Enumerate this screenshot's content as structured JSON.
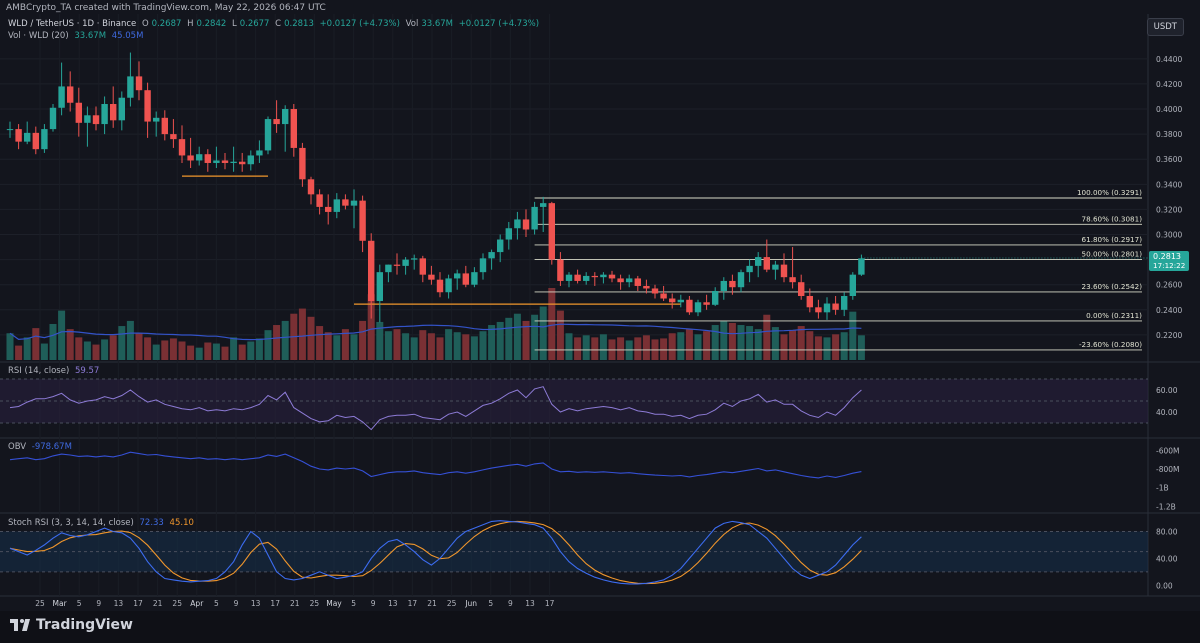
{
  "header": {
    "attribution": "AMBCrypto_TA created with TradingView.com, May 22, 2026 06:47 UTC",
    "symbol": "WLD / TetherUS · 1D · Binance",
    "o_label": "O",
    "o_value": "0.2687",
    "h_label": "H",
    "h_value": "0.2842",
    "l_label": "L",
    "l_value": "0.2677",
    "c_label": "C",
    "c_value": "0.2813",
    "change": "+0.0127 (+4.73%)",
    "vol_label": "Vol",
    "vol_value": "33.67M",
    "vol_change": "+0.0127 (+4.73%)",
    "vol_ma_label": "Vol · WLD (20)",
    "vol_ma_1": "33.67M",
    "vol_ma_2": "45.05M",
    "currency": "USDT"
  },
  "indicators": {
    "rsi_label": "RSI (14, close)",
    "rsi_value": "59.57",
    "obv_label": "OBV",
    "obv_value": "-978.67M",
    "stoch_label": "Stoch RSI (3, 3, 14, 14, close)",
    "stoch_k": "72.33",
    "stoch_d": "45.10"
  },
  "footer": {
    "brand": "TradingView"
  },
  "colors": {
    "up": "#26a69a",
    "down": "#ef5350",
    "background": "#13151d",
    "fib_line": "#d7d9c8",
    "support": "#f0962c",
    "rsi_line": "#8d7bd6",
    "obv_line": "#3550d6",
    "stoch_k": "#3c6cf0",
    "stoch_d": "#f0962c",
    "vol_ma": "#3353c9"
  },
  "chart_data": {
    "type": "candlestick",
    "price_axis": {
      "ylim": [
        0.2,
        0.455
      ],
      "ticks": [
        "0.4400",
        "0.4200",
        "0.4000",
        "0.3800",
        "0.3600",
        "0.3400",
        "0.3200",
        "0.3000",
        "0.2800",
        "0.2600",
        "0.2400",
        "0.2200"
      ],
      "current_price": "0.2813",
      "countdown": "17:12:22"
    },
    "x_axis": {
      "ticks": [
        "25",
        "Mar",
        "5",
        "9",
        "13",
        "17",
        "21",
        "25",
        "Apr",
        "5",
        "9",
        "13",
        "17",
        "21",
        "25",
        "May",
        "5",
        "9",
        "13",
        "17",
        "21",
        "25",
        "Jun",
        "5",
        "9",
        "13",
        "17"
      ]
    },
    "candles_ohlc": [
      [
        0.384,
        0.39,
        0.377,
        0.384
      ],
      [
        0.384,
        0.388,
        0.368,
        0.374
      ],
      [
        0.374,
        0.39,
        0.372,
        0.381
      ],
      [
        0.381,
        0.386,
        0.364,
        0.368
      ],
      [
        0.368,
        0.388,
        0.365,
        0.384
      ],
      [
        0.384,
        0.404,
        0.382,
        0.401
      ],
      [
        0.401,
        0.437,
        0.395,
        0.418
      ],
      [
        0.418,
        0.43,
        0.398,
        0.405
      ],
      [
        0.405,
        0.417,
        0.378,
        0.389
      ],
      [
        0.389,
        0.402,
        0.37,
        0.395
      ],
      [
        0.395,
        0.402,
        0.383,
        0.388
      ],
      [
        0.388,
        0.41,
        0.38,
        0.404
      ],
      [
        0.404,
        0.418,
        0.385,
        0.391
      ],
      [
        0.391,
        0.414,
        0.383,
        0.409
      ],
      [
        0.409,
        0.445,
        0.402,
        0.426
      ],
      [
        0.426,
        0.438,
        0.407,
        0.415
      ],
      [
        0.415,
        0.421,
        0.377,
        0.39
      ],
      [
        0.39,
        0.398,
        0.378,
        0.393
      ],
      [
        0.393,
        0.399,
        0.375,
        0.38
      ],
      [
        0.38,
        0.392,
        0.369,
        0.376
      ],
      [
        0.376,
        0.387,
        0.357,
        0.363
      ],
      [
        0.363,
        0.377,
        0.353,
        0.359
      ],
      [
        0.359,
        0.37,
        0.355,
        0.364
      ],
      [
        0.364,
        0.368,
        0.35,
        0.357
      ],
      [
        0.357,
        0.37,
        0.353,
        0.359
      ],
      [
        0.359,
        0.365,
        0.352,
        0.357
      ],
      [
        0.357,
        0.37,
        0.35,
        0.358
      ],
      [
        0.358,
        0.365,
        0.35,
        0.356
      ],
      [
        0.356,
        0.367,
        0.351,
        0.363
      ],
      [
        0.363,
        0.375,
        0.357,
        0.367
      ],
      [
        0.367,
        0.394,
        0.364,
        0.392
      ],
      [
        0.392,
        0.407,
        0.381,
        0.388
      ],
      [
        0.388,
        0.403,
        0.366,
        0.4
      ],
      [
        0.4,
        0.404,
        0.362,
        0.369
      ],
      [
        0.369,
        0.373,
        0.338,
        0.344
      ],
      [
        0.344,
        0.346,
        0.324,
        0.332
      ],
      [
        0.332,
        0.336,
        0.316,
        0.322
      ],
      [
        0.322,
        0.332,
        0.308,
        0.318
      ],
      [
        0.318,
        0.333,
        0.313,
        0.328
      ],
      [
        0.328,
        0.332,
        0.32,
        0.323
      ],
      [
        0.323,
        0.336,
        0.305,
        0.327
      ],
      [
        0.327,
        0.331,
        0.286,
        0.295
      ],
      [
        0.295,
        0.301,
        0.233,
        0.247
      ],
      [
        0.247,
        0.276,
        0.23,
        0.27
      ],
      [
        0.27,
        0.276,
        0.262,
        0.276
      ],
      [
        0.276,
        0.285,
        0.268,
        0.275
      ],
      [
        0.275,
        0.282,
        0.268,
        0.28
      ],
      [
        0.28,
        0.284,
        0.272,
        0.281
      ],
      [
        0.281,
        0.283,
        0.262,
        0.268
      ],
      [
        0.268,
        0.275,
        0.26,
        0.264
      ],
      [
        0.264,
        0.27,
        0.25,
        0.254
      ],
      [
        0.254,
        0.268,
        0.249,
        0.265
      ],
      [
        0.265,
        0.272,
        0.256,
        0.269
      ],
      [
        0.269,
        0.275,
        0.258,
        0.26
      ],
      [
        0.26,
        0.274,
        0.258,
        0.27
      ],
      [
        0.27,
        0.285,
        0.264,
        0.281
      ],
      [
        0.281,
        0.288,
        0.272,
        0.286
      ],
      [
        0.286,
        0.3,
        0.278,
        0.296
      ],
      [
        0.296,
        0.31,
        0.288,
        0.305
      ],
      [
        0.305,
        0.318,
        0.296,
        0.312
      ],
      [
        0.312,
        0.32,
        0.298,
        0.304
      ],
      [
        0.304,
        0.326,
        0.3,
        0.322
      ],
      [
        0.322,
        0.33,
        0.302,
        0.325
      ],
      [
        0.325,
        0.326,
        0.276,
        0.28
      ],
      [
        0.28,
        0.286,
        0.259,
        0.263
      ],
      [
        0.263,
        0.27,
        0.258,
        0.268
      ],
      [
        0.268,
        0.272,
        0.261,
        0.263
      ],
      [
        0.263,
        0.27,
        0.26,
        0.267
      ],
      [
        0.267,
        0.27,
        0.259,
        0.266
      ],
      [
        0.266,
        0.27,
        0.261,
        0.268
      ],
      [
        0.268,
        0.271,
        0.262,
        0.265
      ],
      [
        0.265,
        0.268,
        0.256,
        0.262
      ],
      [
        0.262,
        0.268,
        0.258,
        0.265
      ],
      [
        0.265,
        0.267,
        0.255,
        0.259
      ],
      [
        0.259,
        0.264,
        0.253,
        0.257
      ],
      [
        0.257,
        0.26,
        0.249,
        0.253
      ],
      [
        0.253,
        0.259,
        0.247,
        0.249
      ],
      [
        0.249,
        0.253,
        0.241,
        0.246
      ],
      [
        0.246,
        0.252,
        0.242,
        0.248
      ],
      [
        0.248,
        0.251,
        0.236,
        0.238
      ],
      [
        0.238,
        0.248,
        0.235,
        0.246
      ],
      [
        0.246,
        0.252,
        0.24,
        0.244
      ],
      [
        0.244,
        0.258,
        0.243,
        0.255
      ],
      [
        0.255,
        0.266,
        0.248,
        0.263
      ],
      [
        0.263,
        0.268,
        0.252,
        0.258
      ],
      [
        0.258,
        0.272,
        0.254,
        0.27
      ],
      [
        0.27,
        0.28,
        0.262,
        0.275
      ],
      [
        0.275,
        0.286,
        0.266,
        0.282
      ],
      [
        0.282,
        0.296,
        0.27,
        0.272
      ],
      [
        0.272,
        0.279,
        0.264,
        0.276
      ],
      [
        0.276,
        0.285,
        0.262,
        0.266
      ],
      [
        0.266,
        0.29,
        0.257,
        0.262
      ],
      [
        0.262,
        0.268,
        0.248,
        0.251
      ],
      [
        0.251,
        0.257,
        0.238,
        0.242
      ],
      [
        0.242,
        0.248,
        0.233,
        0.238
      ],
      [
        0.238,
        0.25,
        0.232,
        0.245
      ],
      [
        0.245,
        0.251,
        0.236,
        0.24
      ],
      [
        0.24,
        0.254,
        0.235,
        0.251
      ],
      [
        0.251,
        0.27,
        0.248,
        0.268
      ],
      [
        0.268,
        0.284,
        0.267,
        0.281
      ]
    ],
    "volume": [
      26,
      14,
      22,
      31,
      16,
      35,
      48,
      30,
      22,
      18,
      15,
      20,
      24,
      33,
      38,
      26,
      22,
      15,
      19,
      21,
      18,
      14,
      12,
      17,
      16,
      13,
      22,
      15,
      18,
      21,
      29,
      34,
      38,
      45,
      50,
      42,
      33,
      27,
      24,
      30,
      25,
      38,
      64,
      37,
      28,
      30,
      26,
      22,
      29,
      26,
      22,
      30,
      27,
      25,
      23,
      28,
      34,
      37,
      41,
      45,
      38,
      44,
      52,
      70,
      48,
      26,
      22,
      24,
      22,
      25,
      20,
      22,
      19,
      22,
      24,
      20,
      21,
      26,
      27,
      30,
      25,
      28,
      34,
      38,
      36,
      34,
      33,
      30,
      44,
      32,
      25,
      29,
      33,
      28,
      23,
      22,
      25,
      27,
      47,
      24
    ],
    "fibonacci": [
      {
        "label": "100.00% (0.3291)",
        "value": 0.3291
      },
      {
        "label": "78.60% (0.3081)",
        "value": 0.3081
      },
      {
        "label": "61.80% (0.2917)",
        "value": 0.2917
      },
      {
        "label": "50.00% (0.2801)",
        "value": 0.2801
      },
      {
        "label": "23.60% (0.2542)",
        "value": 0.2542
      },
      {
        "label": "0.00% (0.2311)",
        "value": 0.2311
      },
      {
        "label": "-23.60% (0.2080)",
        "value": 0.208
      }
    ],
    "rsi": {
      "ylim": [
        20,
        80
      ],
      "ticks": [
        "60.00",
        "40.00"
      ],
      "band": [
        30,
        70
      ]
    },
    "obv": {
      "ticks": [
        "-600M",
        "-800M",
        "-1B",
        "-1.2B"
      ]
    },
    "stoch_rsi": {
      "ylim": [
        -10,
        100
      ],
      "ticks": [
        "80.00",
        "40.00",
        "0.00"
      ],
      "band": [
        20,
        80
      ]
    }
  }
}
